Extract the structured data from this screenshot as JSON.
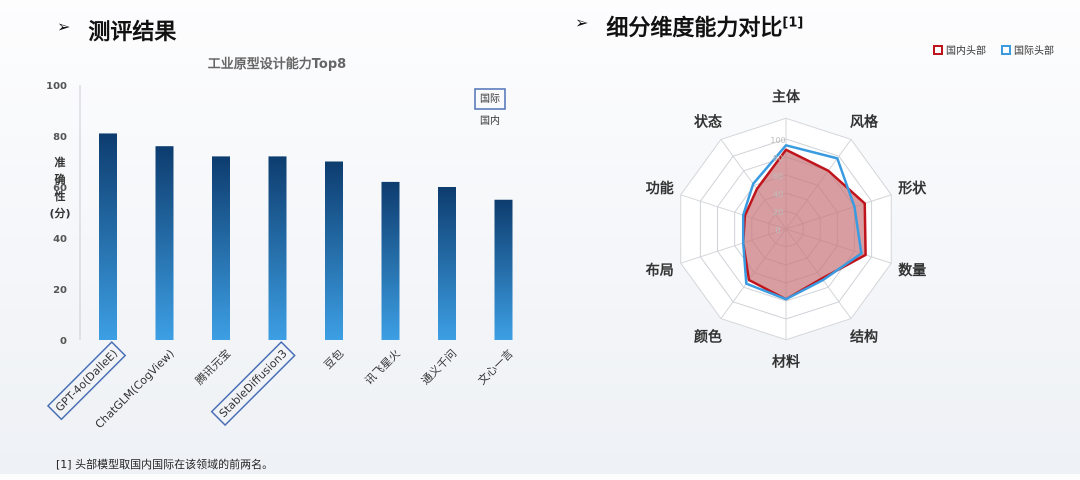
{
  "left_title": "测评结果",
  "right_title": "细分维度能力对比",
  "right_title_sup": "[1]",
  "footnote": "[1] 头部模型取国内国际在该领域的前两名。",
  "chart_data": [
    {
      "type": "bar",
      "title": "工业原型设计能力Top8",
      "ylabel": "准确性(分)",
      "ylim": [
        0,
        100
      ],
      "yticks": [
        0,
        20,
        40,
        60,
        80,
        100
      ],
      "grid": false,
      "legend": {
        "entries": [
          "国际",
          "国内"
        ],
        "placement": "top-right",
        "boxed": "国际"
      },
      "categories": [
        "GPT-4o(DalleE)",
        "ChatGLM(CogView)",
        "腾讯元宝",
        "StableDiffusion3",
        "豆包",
        "讯飞星火",
        "通义千问",
        "文心一言"
      ],
      "values": [
        81,
        76,
        72,
        72,
        70,
        62,
        60,
        55
      ],
      "highlighted": [
        "GPT-4o(DalleE)",
        "StableDiffusion3"
      ],
      "colors": {
        "bar_top": "#0d3c6e",
        "bar_bottom": "#3d9fe4",
        "highlight": "#4a6fb5"
      }
    },
    {
      "type": "radar",
      "axes": [
        "主体",
        "风格",
        "形状",
        "数量",
        "结构",
        "材料",
        "颜色",
        "布局",
        "功能",
        "状态"
      ],
      "rlim": [
        0,
        100
      ],
      "rticks": [
        0,
        20,
        40,
        60,
        80,
        100
      ],
      "legend_placement": "top-right",
      "series": [
        {
          "name": "国内头部",
          "color": "#c0141c",
          "fill": "#c7777b",
          "values": [
            88,
            80,
            92,
            93,
            68,
            78,
            70,
            50,
            48,
            55
          ]
        },
        {
          "name": "国际头部",
          "color": "#3a9be0",
          "fill": "none",
          "values": [
            93,
            97,
            80,
            88,
            70,
            78,
            75,
            50,
            50,
            62
          ]
        }
      ]
    }
  ]
}
